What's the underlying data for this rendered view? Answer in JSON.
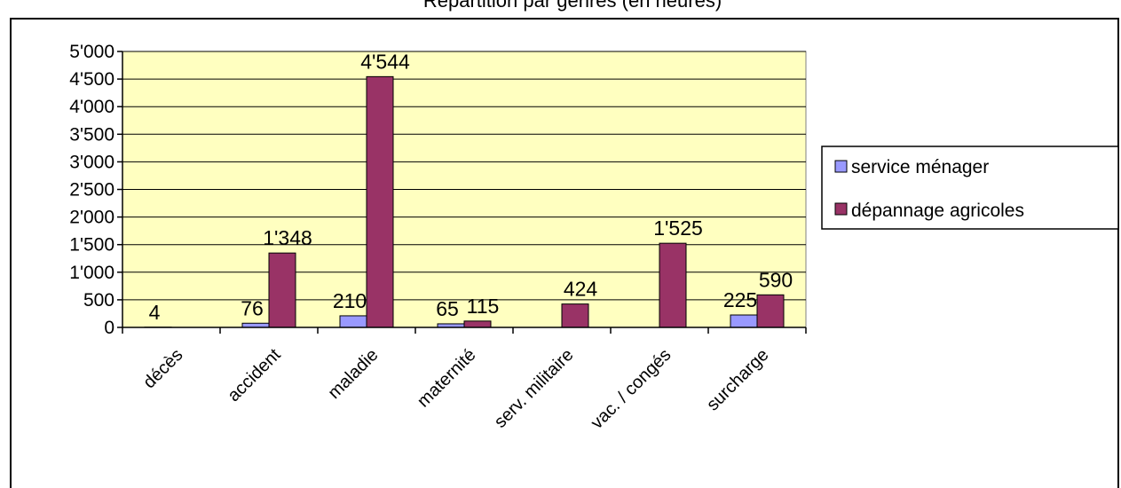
{
  "chart_data": {
    "type": "bar",
    "title": "Répartition par genres (en heures)",
    "categories": [
      "décès",
      "accident",
      "maladie",
      "maternité",
      "serv. militaire",
      "vac. / congés",
      "surcharge"
    ],
    "series": [
      {
        "name": "service ménager",
        "color": "#9999FF",
        "values": [
          4,
          76,
          210,
          65,
          null,
          null,
          225
        ],
        "labels": [
          "4",
          "76",
          "210",
          "65",
          "",
          "",
          "225"
        ]
      },
      {
        "name": "dépannage agricoles",
        "color": "#993366",
        "values": [
          null,
          1348,
          4544,
          115,
          424,
          1525,
          590
        ],
        "labels": [
          "",
          "1'348",
          "4'544",
          "115",
          "424",
          "1'525",
          "590"
        ]
      }
    ],
    "ylim": [
      0,
      5000
    ],
    "yticks": [
      0,
      500,
      1000,
      1500,
      2000,
      2500,
      3000,
      3500,
      4000,
      4500,
      5000
    ],
    "ytick_labels": [
      "0",
      "500",
      "1'000",
      "1'500",
      "2'000",
      "2'500",
      "3'000",
      "3'500",
      "4'000",
      "4'500",
      "5'000"
    ],
    "xlabel": "",
    "ylabel": "",
    "grid": true,
    "plot_background": "#FFFFC0",
    "legend_position": "right"
  }
}
